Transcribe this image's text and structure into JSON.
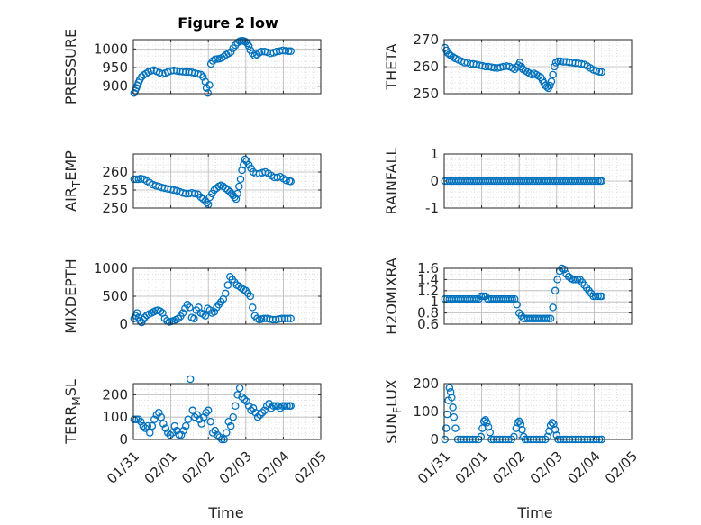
{
  "figure": {
    "title": "Figure 2 low",
    "xlabel": "Time",
    "marker_color": "#0072BD",
    "grid_color": "#b8b8b8",
    "axis_color": "#262626"
  },
  "chart_data": [
    {
      "type": "scatter",
      "title": "Figure 2 low",
      "ylabel": "PRESSURE",
      "ylim": [
        880,
        1025
      ],
      "yticks": [
        900,
        950,
        1000
      ],
      "grid": "on",
      "minor_grid": "on",
      "xlim": [
        "01/31",
        "02/05"
      ],
      "xticks": [
        "01/31",
        "02/01",
        "02/02",
        "02/03",
        "02/04",
        "02/05"
      ],
      "x": [
        0.02,
        0.05,
        0.08,
        0.11,
        0.14,
        0.17,
        0.22,
        0.28,
        0.34,
        0.4,
        0.47,
        0.55,
        0.62,
        0.7,
        0.78,
        0.85,
        0.92,
        1.0,
        1.08,
        1.16,
        1.24,
        1.32,
        1.4,
        1.48,
        1.56,
        1.64,
        1.72,
        1.8,
        1.86,
        1.92,
        1.95,
        1.99,
        2.03,
        2.07,
        2.12,
        2.18,
        2.24,
        2.3,
        2.36,
        2.42,
        2.48,
        2.54,
        2.6,
        2.66,
        2.72,
        2.78,
        2.84,
        2.88,
        2.92,
        2.96,
        3.0,
        3.04,
        3.08,
        3.12,
        3.18,
        3.24,
        3.3,
        3.36,
        3.42,
        3.5,
        3.58,
        3.66,
        3.74,
        3.82,
        3.9,
        3.98,
        4.06,
        4.14,
        4.2
      ],
      "values": [
        882,
        888,
        895,
        902,
        910,
        917,
        925,
        930,
        934,
        938,
        941,
        943,
        940,
        936,
        933,
        935,
        938,
        941,
        942,
        941,
        940,
        939,
        938,
        938,
        937,
        935,
        933,
        931,
        925,
        912,
        895,
        882,
        903,
        960,
        968,
        972,
        973,
        974,
        976,
        980,
        985,
        988,
        992,
        1002,
        1010,
        1017,
        1021,
        1022,
        1022,
        1021,
        1019,
        1015,
        1008,
        997,
        988,
        982,
        985,
        990,
        993,
        993,
        991,
        988,
        990,
        993,
        994,
        996,
        995,
        994,
        994
      ]
    },
    {
      "type": "scatter",
      "ylabel": "THETA",
      "ylim": [
        250,
        270
      ],
      "yticks": [
        250,
        260,
        270
      ],
      "grid": "on",
      "minor_grid": "on",
      "xlim": [
        "01/31",
        "02/05"
      ],
      "xticks": [
        "01/31",
        "02/01",
        "02/02",
        "02/03",
        "02/04",
        "02/05"
      ],
      "x": [
        0.02,
        0.06,
        0.1,
        0.14,
        0.18,
        0.24,
        0.3,
        0.38,
        0.46,
        0.54,
        0.62,
        0.7,
        0.78,
        0.86,
        0.94,
        1.02,
        1.1,
        1.18,
        1.26,
        1.34,
        1.42,
        1.5,
        1.58,
        1.66,
        1.74,
        1.82,
        1.88,
        1.94,
        1.98,
        2.02,
        2.06,
        2.1,
        2.16,
        2.22,
        2.28,
        2.34,
        2.4,
        2.46,
        2.52,
        2.58,
        2.62,
        2.66,
        2.7,
        2.74,
        2.78,
        2.82,
        2.86,
        2.9,
        2.94,
        2.98,
        3.04,
        3.1,
        3.18,
        3.26,
        3.34,
        3.42,
        3.5,
        3.58,
        3.66,
        3.74,
        3.82,
        3.9,
        3.98,
        4.06,
        4.14,
        4.2
      ],
      "values": [
        267,
        266,
        265,
        264.5,
        264,
        263.5,
        263,
        262.5,
        262,
        261.5,
        261.5,
        261,
        261,
        260.8,
        260.5,
        260.3,
        260,
        260,
        259.8,
        259.6,
        259.5,
        259.7,
        260,
        260.2,
        260,
        259.5,
        259,
        259.8,
        260.5,
        261.5,
        260,
        259,
        258.5,
        258,
        257.5,
        257,
        257.5,
        257,
        256.5,
        256,
        255,
        254,
        253,
        252.5,
        252,
        253,
        254.5,
        257,
        260,
        261.5,
        262,
        262,
        261.8,
        261.8,
        261.6,
        261.5,
        261.3,
        261.2,
        261,
        260.8,
        260.2,
        259.5,
        258.8,
        258.4,
        258.1,
        258
      ]
    },
    {
      "type": "scatter",
      "ylabel": "AIR_TEMP",
      "ylim": [
        250,
        265
      ],
      "yticks": [
        250,
        255,
        260
      ],
      "grid": "on",
      "minor_grid": "on",
      "xlim": [
        "01/31",
        "02/05"
      ],
      "xticks": [
        "01/31",
        "02/01",
        "02/02",
        "02/03",
        "02/04",
        "02/05"
      ],
      "x": [
        0.02,
        0.08,
        0.14,
        0.2,
        0.28,
        0.36,
        0.44,
        0.52,
        0.6,
        0.68,
        0.76,
        0.84,
        0.92,
        1.0,
        1.08,
        1.16,
        1.24,
        1.32,
        1.4,
        1.48,
        1.56,
        1.64,
        1.72,
        1.8,
        1.86,
        1.92,
        1.96,
        2.0,
        2.04,
        2.1,
        2.16,
        2.22,
        2.28,
        2.34,
        2.4,
        2.46,
        2.52,
        2.58,
        2.62,
        2.66,
        2.7,
        2.74,
        2.78,
        2.82,
        2.86,
        2.9,
        2.94,
        2.98,
        3.02,
        3.08,
        3.14,
        3.2,
        3.28,
        3.36,
        3.44,
        3.52,
        3.6,
        3.68,
        3.76,
        3.84,
        3.92,
        4.0,
        4.08,
        4.16,
        4.2
      ],
      "values": [
        258,
        258,
        258,
        258.2,
        258,
        257.5,
        257,
        256.5,
        256.2,
        256,
        255.7,
        255.5,
        255.3,
        255.2,
        255,
        254.8,
        254.5,
        254.2,
        254,
        254,
        254.2,
        254,
        253.8,
        253,
        252.5,
        252,
        251.5,
        251,
        253,
        254,
        255,
        255.5,
        256,
        256.3,
        256,
        255.5,
        255,
        254.5,
        254,
        253.5,
        253,
        252.5,
        254,
        256,
        258,
        260.5,
        262,
        263.5,
        263,
        262,
        261,
        260,
        259.5,
        259.5,
        259.8,
        260,
        259.6,
        259,
        258.5,
        258.5,
        258.7,
        258.2,
        257.7,
        257.5,
        257.4
      ]
    },
    {
      "type": "scatter",
      "ylabel": "RAINFALL",
      "ylim": [
        -1,
        1
      ],
      "yticks": [
        -1,
        0,
        1
      ],
      "grid": "on",
      "minor_grid": "on",
      "xlim": [
        "01/31",
        "02/05"
      ],
      "xticks": [
        "01/31",
        "02/01",
        "02/02",
        "02/03",
        "02/04",
        "02/05"
      ],
      "x": [
        0.02,
        0.08,
        0.14,
        0.2,
        0.26,
        0.32,
        0.38,
        0.44,
        0.5,
        0.56,
        0.62,
        0.68,
        0.74,
        0.8,
        0.86,
        0.92,
        0.98,
        1.04,
        1.1,
        1.16,
        1.22,
        1.28,
        1.34,
        1.4,
        1.46,
        1.52,
        1.58,
        1.64,
        1.7,
        1.76,
        1.82,
        1.88,
        1.94,
        2.0,
        2.06,
        2.12,
        2.18,
        2.24,
        2.3,
        2.36,
        2.42,
        2.48,
        2.54,
        2.6,
        2.66,
        2.72,
        2.78,
        2.84,
        2.9,
        2.96,
        3.02,
        3.08,
        3.14,
        3.2,
        3.26,
        3.32,
        3.38,
        3.44,
        3.5,
        3.56,
        3.62,
        3.68,
        3.74,
        3.8,
        3.86,
        3.92,
        3.98,
        4.04,
        4.1,
        4.16,
        4.2
      ],
      "values": [
        0,
        0,
        0,
        0,
        0,
        0,
        0,
        0,
        0,
        0,
        0,
        0,
        0,
        0,
        0,
        0,
        0,
        0,
        0,
        0,
        0,
        0,
        0,
        0,
        0,
        0,
        0,
        0,
        0,
        0,
        0,
        0,
        0,
        0,
        0,
        0,
        0,
        0,
        0,
        0,
        0,
        0,
        0,
        0,
        0,
        0,
        0,
        0,
        0,
        0,
        0,
        0,
        0,
        0,
        0,
        0,
        0,
        0,
        0,
        0,
        0,
        0,
        0,
        0,
        0,
        0,
        0,
        0,
        0,
        0,
        0
      ]
    },
    {
      "type": "scatter",
      "ylabel": "MIXDEPTH",
      "ylim": [
        0,
        1000
      ],
      "yticks": [
        0,
        500,
        1000
      ],
      "grid": "on",
      "minor_grid": "on",
      "xlim": [
        "01/31",
        "02/05"
      ],
      "xticks": [
        "01/31",
        "02/01",
        "02/02",
        "02/03",
        "02/04",
        "02/05"
      ],
      "x": [
        0.02,
        0.06,
        0.1,
        0.14,
        0.18,
        0.22,
        0.26,
        0.3,
        0.36,
        0.42,
        0.48,
        0.54,
        0.6,
        0.66,
        0.72,
        0.78,
        0.84,
        0.9,
        0.96,
        1.02,
        1.08,
        1.14,
        1.2,
        1.26,
        1.32,
        1.38,
        1.44,
        1.5,
        1.56,
        1.62,
        1.68,
        1.74,
        1.8,
        1.86,
        1.92,
        1.98,
        2.04,
        2.1,
        2.16,
        2.22,
        2.28,
        2.34,
        2.4,
        2.46,
        2.52,
        2.58,
        2.64,
        2.7,
        2.76,
        2.82,
        2.88,
        2.94,
        3.0,
        3.06,
        3.12,
        3.18,
        3.24,
        3.3,
        3.36,
        3.42,
        3.48,
        3.56,
        3.64,
        3.72,
        3.8,
        3.88,
        3.96,
        4.04,
        4.12,
        4.2
      ],
      "values": [
        100,
        150,
        200,
        120,
        60,
        30,
        80,
        120,
        160,
        180,
        200,
        220,
        240,
        250,
        230,
        200,
        100,
        60,
        40,
        50,
        60,
        80,
        100,
        140,
        200,
        280,
        350,
        300,
        120,
        100,
        250,
        300,
        200,
        180,
        150,
        280,
        250,
        200,
        220,
        300,
        350,
        400,
        450,
        550,
        700,
        850,
        800,
        750,
        700,
        680,
        650,
        620,
        600,
        550,
        500,
        300,
        150,
        100,
        80,
        90,
        100,
        100,
        90,
        80,
        80,
        90,
        100,
        100,
        100,
        100
      ]
    },
    {
      "type": "scatter",
      "ylabel": "H2OMIXRA",
      "ylim": [
        0.6,
        1.6
      ],
      "yticks": [
        0.6,
        0.8,
        1,
        1.2,
        1.4,
        1.6
      ],
      "grid": "on",
      "minor_grid": "on",
      "xlim": [
        "01/31",
        "02/05"
      ],
      "xticks": [
        "01/31",
        "02/01",
        "02/02",
        "02/03",
        "02/04",
        "02/05"
      ],
      "x": [
        0.02,
        0.08,
        0.14,
        0.2,
        0.26,
        0.32,
        0.38,
        0.44,
        0.5,
        0.56,
        0.62,
        0.68,
        0.74,
        0.8,
        0.86,
        0.92,
        0.98,
        1.04,
        1.1,
        1.16,
        1.22,
        1.28,
        1.34,
        1.4,
        1.46,
        1.52,
        1.58,
        1.64,
        1.7,
        1.76,
        1.82,
        1.88,
        1.94,
        2.0,
        2.06,
        2.12,
        2.18,
        2.24,
        2.3,
        2.36,
        2.42,
        2.48,
        2.54,
        2.6,
        2.66,
        2.72,
        2.78,
        2.84,
        2.9,
        2.96,
        3.02,
        3.08,
        3.14,
        3.2,
        3.26,
        3.32,
        3.38,
        3.44,
        3.5,
        3.56,
        3.62,
        3.68,
        3.74,
        3.8,
        3.86,
        3.92,
        3.98,
        4.04,
        4.1,
        4.16,
        4.2
      ],
      "values": [
        1.05,
        1.05,
        1.05,
        1.05,
        1.05,
        1.05,
        1.05,
        1.05,
        1.05,
        1.05,
        1.05,
        1.05,
        1.05,
        1.05,
        1.05,
        1.05,
        1.1,
        1.1,
        1.1,
        1.05,
        1.05,
        1.05,
        1.05,
        1.05,
        1.05,
        1.05,
        1.05,
        1.05,
        1.05,
        1.05,
        1.05,
        1.05,
        0.95,
        0.8,
        0.75,
        0.7,
        0.7,
        0.7,
        0.7,
        0.7,
        0.7,
        0.7,
        0.7,
        0.7,
        0.7,
        0.7,
        0.7,
        0.7,
        0.9,
        1.2,
        1.4,
        1.55,
        1.6,
        1.58,
        1.5,
        1.45,
        1.42,
        1.4,
        1.4,
        1.4,
        1.4,
        1.35,
        1.3,
        1.25,
        1.2,
        1.15,
        1.1,
        1.1,
        1.1,
        1.1,
        1.1
      ]
    },
    {
      "type": "scatter",
      "ylabel": "TERR_MSL",
      "ylim": [
        0,
        250
      ],
      "yticks": [
        0,
        100,
        200
      ],
      "grid": "on",
      "minor_grid": "on",
      "xlim": [
        "01/31",
        "02/05"
      ],
      "xticks": [
        "01/31",
        "02/01",
        "02/02",
        "02/03",
        "02/04",
        "02/05"
      ],
      "x": [
        0.02,
        0.08,
        0.14,
        0.2,
        0.26,
        0.32,
        0.38,
        0.44,
        0.5,
        0.56,
        0.62,
        0.68,
        0.74,
        0.8,
        0.86,
        0.92,
        0.98,
        1.04,
        1.1,
        1.16,
        1.22,
        1.28,
        1.34,
        1.4,
        1.46,
        1.52,
        1.58,
        1.64,
        1.7,
        1.76,
        1.82,
        1.88,
        1.94,
        2.0,
        2.06,
        2.12,
        2.18,
        2.24,
        2.3,
        2.36,
        2.42,
        2.48,
        2.54,
        2.6,
        2.66,
        2.72,
        2.78,
        2.84,
        2.9,
        2.96,
        3.02,
        3.08,
        3.14,
        3.2,
        3.26,
        3.32,
        3.38,
        3.44,
        3.5,
        3.56,
        3.62,
        3.68,
        3.74,
        3.8,
        3.86,
        3.92,
        3.98,
        4.04,
        4.1,
        4.16,
        4.2
      ],
      "values": [
        90,
        90,
        90,
        80,
        60,
        50,
        60,
        30,
        60,
        90,
        110,
        120,
        100,
        70,
        50,
        30,
        20,
        30,
        60,
        40,
        20,
        20,
        40,
        60,
        90,
        270,
        130,
        100,
        110,
        90,
        70,
        100,
        120,
        130,
        80,
        30,
        40,
        20,
        10,
        0,
        0,
        30,
        80,
        60,
        100,
        150,
        200,
        230,
        190,
        180,
        170,
        150,
        130,
        140,
        120,
        100,
        110,
        120,
        130,
        150,
        160,
        140,
        150,
        150,
        150,
        140,
        150,
        150,
        150,
        150,
        150
      ]
    },
    {
      "type": "scatter",
      "ylabel": "SUN_FLUX",
      "ylim": [
        0,
        200
      ],
      "yticks": [
        0,
        100,
        200
      ],
      "grid": "on",
      "minor_grid": "on",
      "xlim": [
        "01/31",
        "02/05"
      ],
      "xticks": [
        "01/31",
        "02/01",
        "02/02",
        "02/03",
        "02/04",
        "02/05"
      ],
      "x": [
        0.02,
        0.05,
        0.08,
        0.11,
        0.14,
        0.17,
        0.2,
        0.23,
        0.26,
        0.3,
        0.36,
        0.44,
        0.52,
        0.6,
        0.68,
        0.76,
        0.84,
        0.92,
        0.98,
        1.02,
        1.06,
        1.1,
        1.14,
        1.18,
        1.22,
        1.26,
        1.32,
        1.4,
        1.48,
        1.56,
        1.64,
        1.72,
        1.8,
        1.86,
        1.92,
        1.96,
        2.0,
        2.04,
        2.08,
        2.12,
        2.16,
        2.22,
        2.3,
        2.38,
        2.46,
        2.54,
        2.62,
        2.7,
        2.76,
        2.8,
        2.84,
        2.88,
        2.92,
        2.96,
        3.0,
        3.04,
        3.1,
        3.18,
        3.26,
        3.34,
        3.42,
        3.5,
        3.58,
        3.66,
        3.74,
        3.82,
        3.9,
        3.98,
        4.06,
        4.14,
        4.2
      ],
      "values": [
        0,
        40,
        90,
        140,
        185,
        170,
        150,
        115,
        80,
        40,
        0,
        0,
        0,
        0,
        0,
        0,
        0,
        0,
        10,
        40,
        65,
        70,
        60,
        45,
        25,
        0,
        0,
        0,
        0,
        0,
        0,
        0,
        0,
        10,
        40,
        60,
        65,
        55,
        35,
        10,
        0,
        0,
        0,
        0,
        0,
        0,
        0,
        0,
        10,
        30,
        50,
        60,
        55,
        35,
        15,
        0,
        0,
        0,
        0,
        0,
        0,
        0,
        0,
        0,
        0,
        0,
        0,
        0,
        0,
        0,
        0
      ]
    }
  ]
}
